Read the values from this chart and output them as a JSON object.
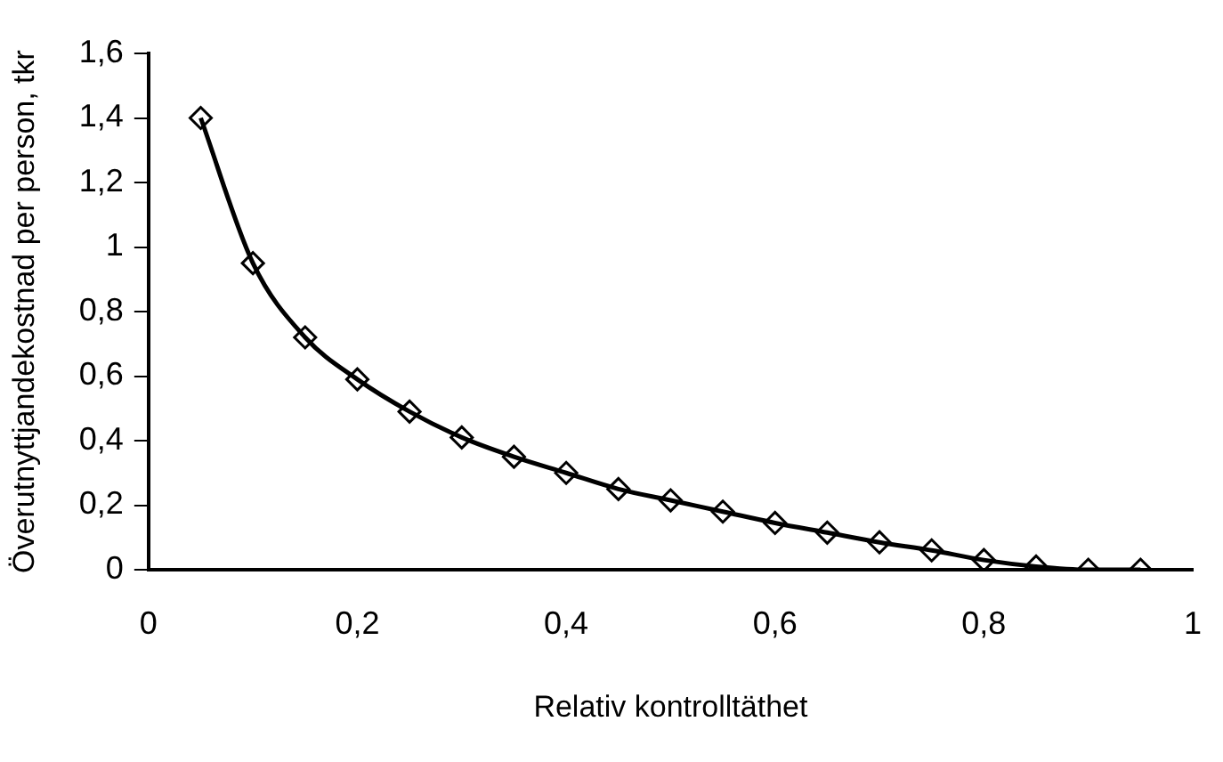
{
  "chart_data": {
    "type": "line",
    "xlabel": "Relativ kontrolltäthet",
    "ylabel": "Överutnyttjandekostnad per person, tkr",
    "x": [
      0.05,
      0.1,
      0.15,
      0.2,
      0.25,
      0.3,
      0.35,
      0.4,
      0.45,
      0.5,
      0.55,
      0.6,
      0.65,
      0.7,
      0.75,
      0.8,
      0.85,
      0.9,
      0.95
    ],
    "series": [
      {
        "color": "#000000",
        "values": [
          1.4,
          0.95,
          0.72,
          0.59,
          0.49,
          0.41,
          0.35,
          0.3,
          0.25,
          0.215,
          0.18,
          0.145,
          0.115,
          0.085,
          0.06,
          0.03,
          0.01,
          0,
          0
        ]
      }
    ],
    "xlim": [
      0,
      1
    ],
    "xticks": [
      0,
      {
        "value": 0.2,
        "label": "0,2"
      },
      {
        "value": 0.4,
        "label": "0,4"
      },
      {
        "value": 0.6,
        "label": "0,6"
      },
      {
        "value": 0.8,
        "label": "0,8"
      },
      1
    ],
    "ylim": [
      0,
      1.6
    ],
    "yticks": [
      0,
      {
        "value": 0.2,
        "label": "0,2"
      },
      {
        "value": 0.4,
        "label": "0,4"
      },
      {
        "value": 0.6,
        "label": "0,6"
      },
      {
        "value": 0.8,
        "label": "0,8"
      },
      1,
      {
        "value": 1.2,
        "label": "1,2"
      },
      {
        "value": 1.4,
        "label": "1,4"
      },
      {
        "value": 1.6,
        "label": "1,6"
      }
    ],
    "marker": "diamond",
    "line_style": "solid",
    "grid": false,
    "legend": false
  }
}
